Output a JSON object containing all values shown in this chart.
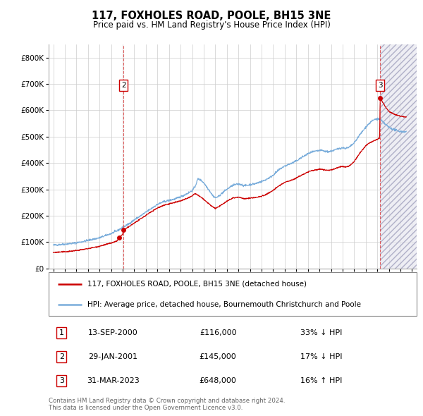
{
  "title": "117, FOXHOLES ROAD, POOLE, BH15 3NE",
  "subtitle": "Price paid vs. HM Land Registry's House Price Index (HPI)",
  "legend_line1": "117, FOXHOLES ROAD, POOLE, BH15 3NE (detached house)",
  "legend_line2": "HPI: Average price, detached house, Bournemouth Christchurch and Poole",
  "transactions": [
    {
      "num": 1,
      "date": "13-SEP-2000",
      "year": 2000.71,
      "price": 116000,
      "pct": "33%",
      "dir": "↓"
    },
    {
      "num": 2,
      "date": "29-JAN-2001",
      "year": 2001.08,
      "price": 145000,
      "pct": "17%",
      "dir": "↓"
    },
    {
      "num": 3,
      "date": "31-MAR-2023",
      "year": 2023.25,
      "price": 648000,
      "pct": "16%",
      "dir": "↑"
    }
  ],
  "table_rows": [
    {
      "num": 1,
      "date": "13-SEP-2000",
      "price": "£116,000",
      "hpi": "33% ↓ HPI"
    },
    {
      "num": 2,
      "date": "29-JAN-2001",
      "price": "£145,000",
      "hpi": "17% ↓ HPI"
    },
    {
      "num": 3,
      "date": "31-MAR-2023",
      "price": "£648,000",
      "hpi": "16% ↑ HPI"
    }
  ],
  "footnote1": "Contains HM Land Registry data © Crown copyright and database right 2024.",
  "footnote2": "This data is licensed under the Open Government Licence v3.0.",
  "hpi_line_color": "#7aaddb",
  "price_line_color": "#cc0000",
  "marker_color": "#cc0000",
  "dashed_line_color": "#dd4444",
  "ylim": [
    0,
    850000
  ],
  "yticks": [
    0,
    100000,
    200000,
    300000,
    400000,
    500000,
    600000,
    700000,
    800000
  ],
  "xlim_start": 1994.6,
  "xlim_end": 2026.4,
  "xticks": [
    1995,
    1996,
    1997,
    1998,
    1999,
    2000,
    2001,
    2002,
    2003,
    2004,
    2005,
    2006,
    2007,
    2008,
    2009,
    2010,
    2011,
    2012,
    2013,
    2014,
    2015,
    2016,
    2017,
    2018,
    2019,
    2020,
    2021,
    2022,
    2023,
    2024,
    2025,
    2026
  ],
  "shade_start": 2023.25,
  "vline_transactions": [
    2,
    3
  ]
}
